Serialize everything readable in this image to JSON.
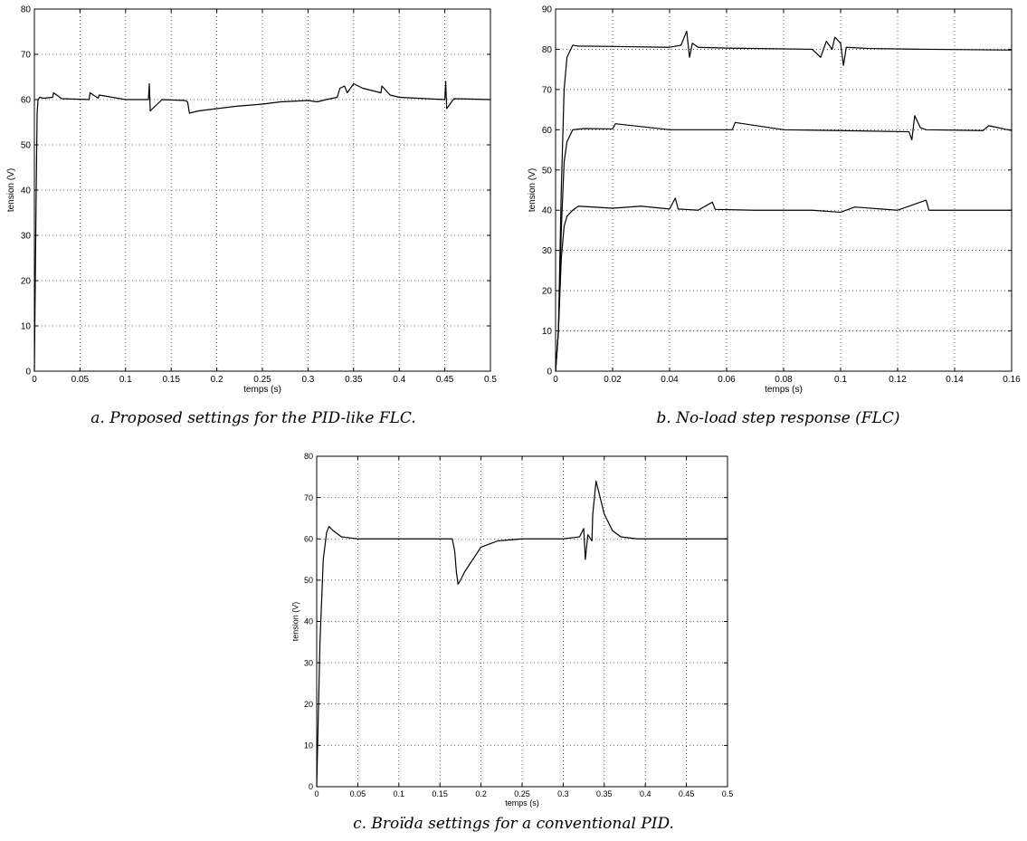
{
  "figure": {
    "captions": [
      "a. Proposed settings for the PID-like FLC.",
      "b. No-load step response (FLC)",
      "c. Broïda settings for a conventional PID."
    ]
  },
  "chart_data": [
    {
      "type": "line",
      "title": "",
      "xlabel": "temps (s)",
      "ylabel": "tension (V)",
      "xlim": [
        0,
        0.5
      ],
      "ylim": [
        0,
        80
      ],
      "xticks": [
        0,
        0.05,
        0.1,
        0.15,
        0.2,
        0.25,
        0.3,
        0.35,
        0.4,
        0.45,
        0.5
      ],
      "xtick_labels": [
        "0",
        "0.05",
        "0.1",
        "0.15",
        "0.2",
        "0.25",
        "0.3",
        "0.35",
        "0.4",
        "0.45",
        "0.5"
      ],
      "yticks": [
        0,
        10,
        20,
        30,
        40,
        50,
        60,
        70,
        80
      ],
      "ytick_labels": [
        "0",
        "10",
        "20",
        "30",
        "40",
        "50",
        "60",
        "70",
        "80"
      ],
      "grid": true,
      "series": [
        {
          "x": [
            0,
            0.002,
            0.003,
            0.004,
            0.006,
            0.01,
            0.02,
            0.021,
            0.03,
            0.06,
            0.061,
            0.07,
            0.071,
            0.1,
            0.125,
            0.126,
            0.127,
            0.14,
            0.165,
            0.168,
            0.17,
            0.18,
            0.2,
            0.22,
            0.25,
            0.27,
            0.3,
            0.31,
            0.32,
            0.332,
            0.335,
            0.34,
            0.343,
            0.35,
            0.36,
            0.37,
            0.38,
            0.381,
            0.39,
            0.4,
            0.42,
            0.45,
            0.451,
            0.452,
            0.46,
            0.5
          ],
          "y": [
            0,
            40,
            57,
            60,
            60.5,
            60.3,
            60.5,
            61.5,
            60.2,
            60,
            61.5,
            60.3,
            61,
            60,
            60,
            63.5,
            57.5,
            60,
            59.8,
            59.5,
            57,
            57.5,
            58,
            58.5,
            59,
            59.5,
            59.8,
            59.5,
            60,
            60.5,
            62.5,
            63,
            61.5,
            63.5,
            62.5,
            62,
            61.5,
            63,
            61,
            60.5,
            60.3,
            60,
            64,
            58,
            60.2,
            60
          ]
        }
      ]
    },
    {
      "type": "line",
      "title": "",
      "xlabel": "temps (s)",
      "ylabel": "tension (V)",
      "xlim": [
        0,
        0.16
      ],
      "ylim": [
        0,
        90
      ],
      "xticks": [
        0,
        0.02,
        0.04,
        0.06,
        0.08,
        0.1,
        0.12,
        0.14,
        0.16
      ],
      "xtick_labels": [
        "0",
        "0.02",
        "0.04",
        "0.06",
        "0.08",
        "0.1",
        "0.12",
        "0.14",
        "0.16"
      ],
      "yticks": [
        0,
        10,
        20,
        30,
        40,
        50,
        60,
        70,
        80,
        90
      ],
      "ytick_labels": [
        "0",
        "10",
        "20",
        "30",
        "40",
        "50",
        "60",
        "70",
        "80",
        "90"
      ],
      "grid": true,
      "series": [
        {
          "x": [
            0,
            0.001,
            0.002,
            0.003,
            0.004,
            0.006,
            0.008,
            0.02,
            0.04,
            0.044,
            0.046,
            0.047,
            0.048,
            0.05,
            0.06,
            0.09,
            0.093,
            0.095,
            0.097,
            0.098,
            0.1,
            0.101,
            0.102,
            0.11,
            0.13,
            0.16
          ],
          "y": [
            0,
            10,
            45,
            70,
            78,
            81,
            80.8,
            80.7,
            80.5,
            81,
            84.5,
            78,
            81.5,
            80.5,
            80.3,
            80,
            78,
            82,
            80,
            83,
            81.5,
            76,
            80.5,
            80.2,
            80,
            79.8
          ]
        },
        {
          "x": [
            0,
            0.001,
            0.002,
            0.003,
            0.004,
            0.006,
            0.01,
            0.02,
            0.021,
            0.04,
            0.062,
            0.063,
            0.08,
            0.1,
            0.124,
            0.125,
            0.126,
            0.128,
            0.13,
            0.15,
            0.152,
            0.16
          ],
          "y": [
            0,
            10,
            35,
            52,
            57,
            60,
            60.3,
            60.2,
            61.5,
            60,
            60,
            61.8,
            60,
            59.8,
            59.5,
            57.5,
            63.5,
            60.5,
            60,
            59.8,
            61,
            59.8
          ]
        },
        {
          "x": [
            0,
            0.001,
            0.002,
            0.003,
            0.004,
            0.006,
            0.008,
            0.02,
            0.03,
            0.04,
            0.042,
            0.043,
            0.05,
            0.055,
            0.056,
            0.07,
            0.09,
            0.1,
            0.105,
            0.12,
            0.13,
            0.131,
            0.14,
            0.16
          ],
          "y": [
            0,
            10,
            28,
            36,
            38.5,
            40,
            41,
            40.5,
            41,
            40.3,
            43,
            40.3,
            40,
            42,
            40.2,
            40,
            40,
            39.5,
            40.8,
            40,
            42.5,
            40,
            40,
            40
          ]
        }
      ]
    },
    {
      "type": "line",
      "title": "",
      "xlabel": "temps (s)",
      "ylabel": "tension (V)",
      "xlim": [
        0,
        0.5
      ],
      "ylim": [
        0,
        80
      ],
      "xticks": [
        0,
        0.05,
        0.1,
        0.15,
        0.2,
        0.25,
        0.3,
        0.35,
        0.4,
        0.45,
        0.5
      ],
      "xtick_labels": [
        "0",
        "0.05",
        "0.1",
        "0.15",
        "0.2",
        "0.25",
        "0.3",
        "0.35",
        "0.4",
        "0.45",
        "0.5"
      ],
      "yticks": [
        0,
        10,
        20,
        30,
        40,
        50,
        60,
        70,
        80
      ],
      "ytick_labels": [
        "0",
        "10",
        "20",
        "30",
        "40",
        "50",
        "60",
        "70",
        "80"
      ],
      "grid": true,
      "series": [
        {
          "x": [
            0,
            0.004,
            0.008,
            0.012,
            0.015,
            0.02,
            0.03,
            0.05,
            0.1,
            0.165,
            0.168,
            0.17,
            0.172,
            0.175,
            0.18,
            0.19,
            0.2,
            0.22,
            0.25,
            0.3,
            0.32,
            0.325,
            0.327,
            0.33,
            0.335,
            0.336,
            0.34,
            0.345,
            0.35,
            0.36,
            0.37,
            0.39,
            0.42,
            0.5
          ],
          "y": [
            0,
            35,
            55,
            61.5,
            63,
            62,
            60.5,
            60,
            60,
            60,
            57,
            52,
            49,
            50,
            52,
            55,
            58,
            59.5,
            60,
            60,
            60.5,
            62.5,
            55,
            61,
            59.5,
            66,
            74,
            70,
            66,
            62,
            60.5,
            60,
            60,
            60
          ]
        }
      ]
    }
  ]
}
